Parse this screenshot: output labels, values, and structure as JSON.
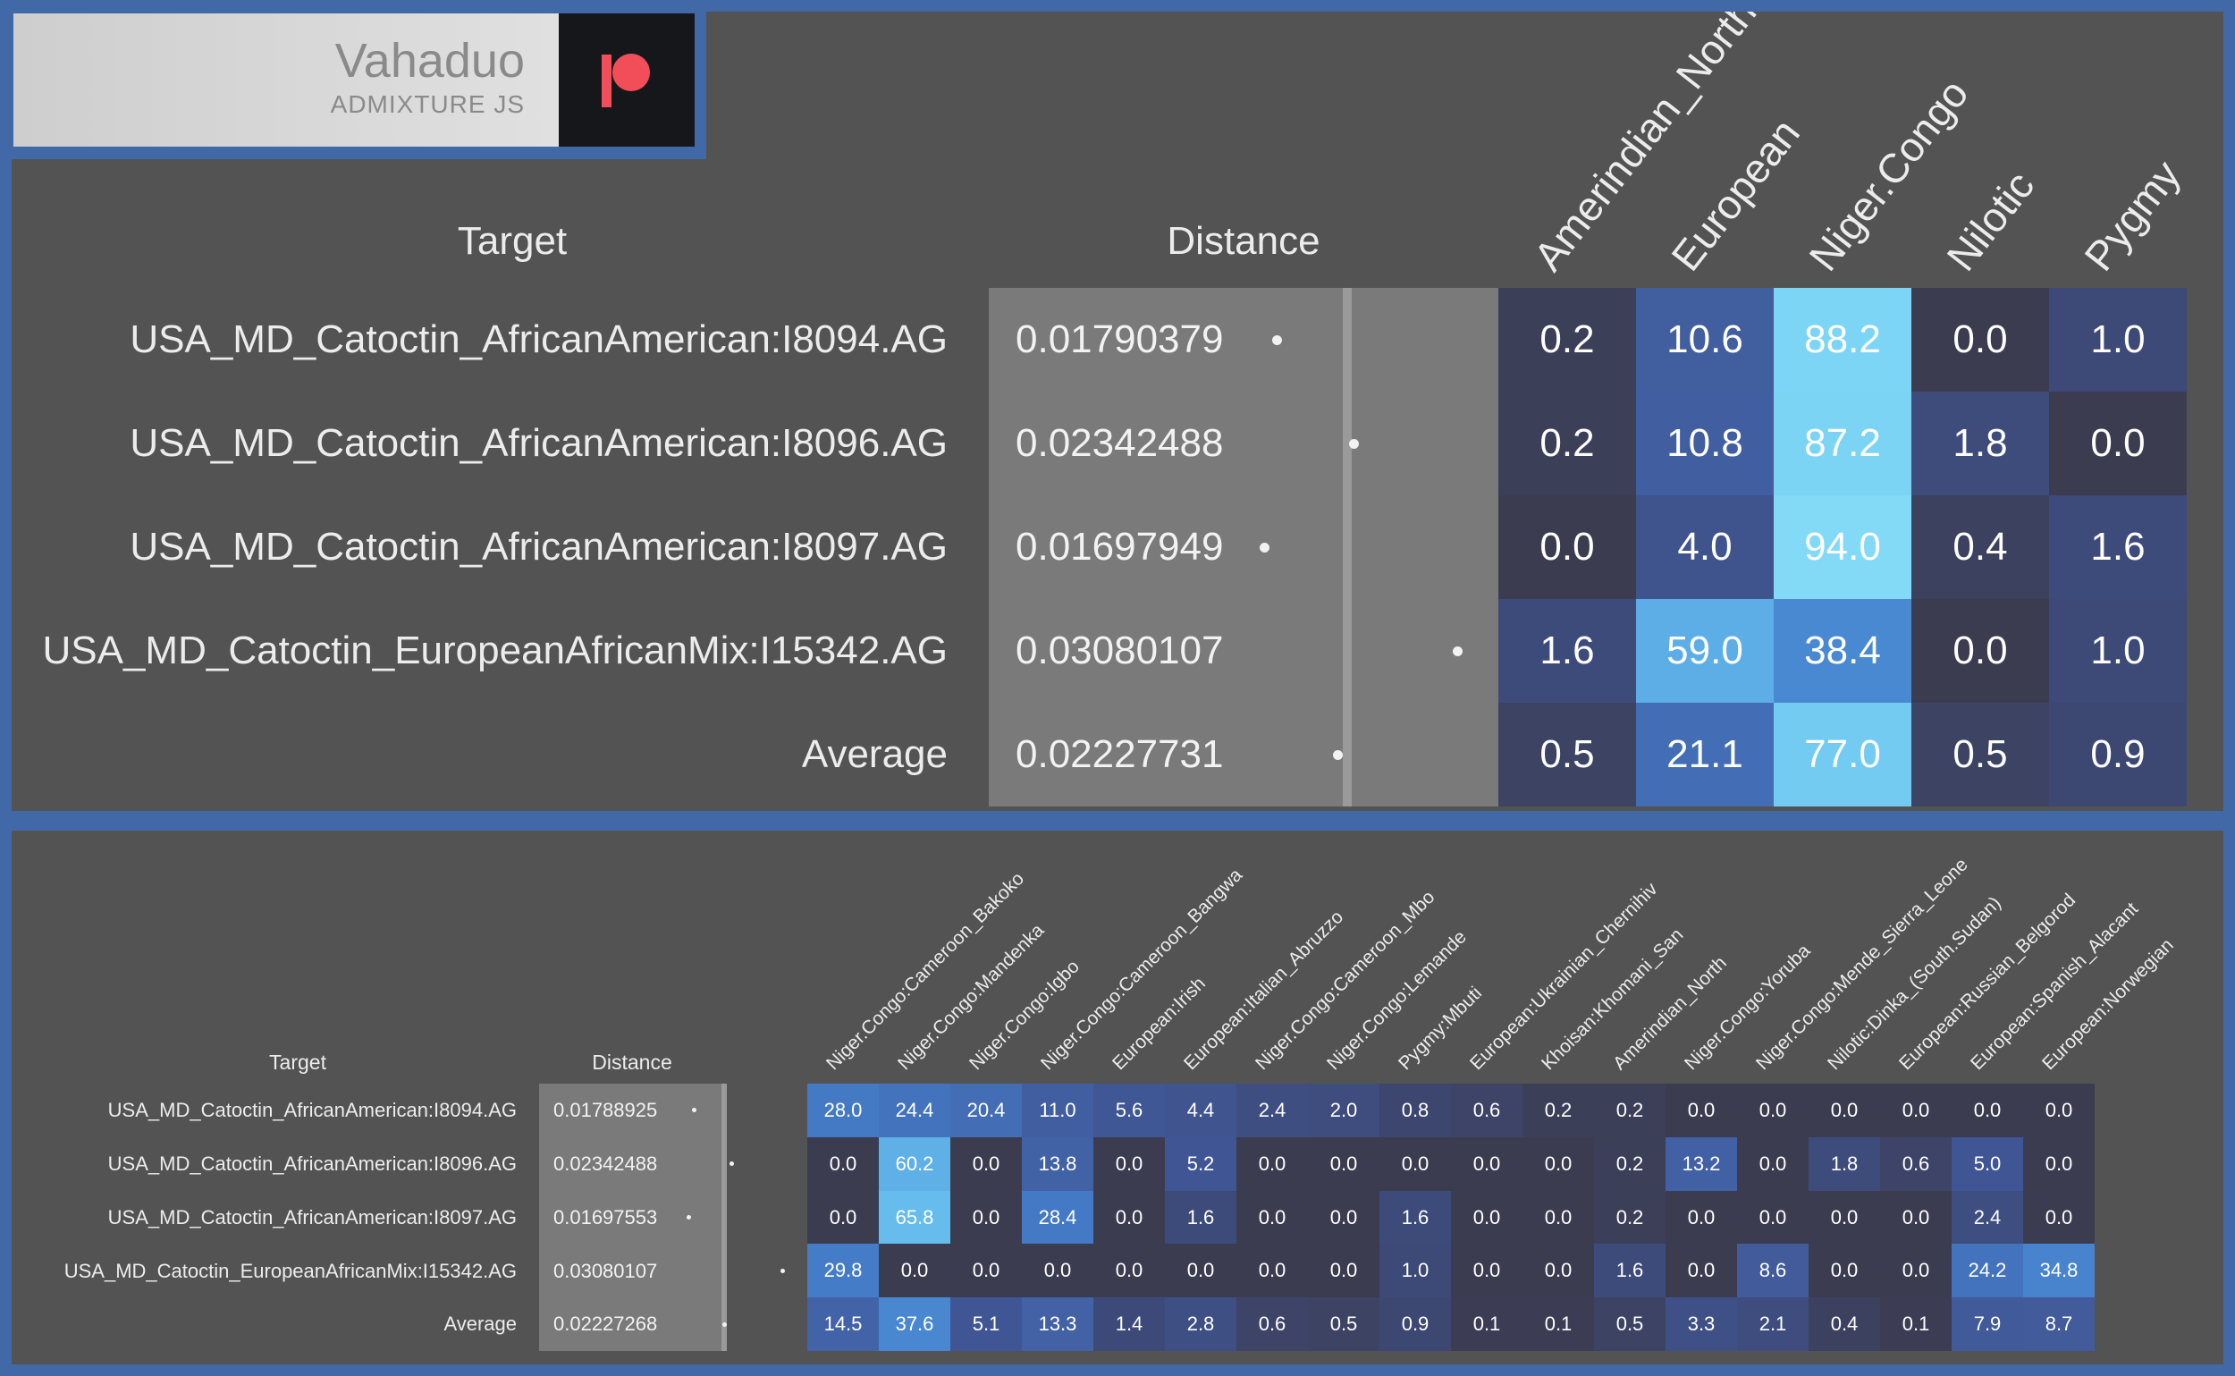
{
  "logo": {
    "title": "Vahaduo",
    "subtitle": "ADMIXTURE JS",
    "mark_icon": "patreon-icon",
    "mark_color": "#f24e5a"
  },
  "colors": {
    "frame": "#4169a8",
    "panel": "#535353",
    "distance_bg": "#7a7a7a",
    "heat_low": "#3c3c50",
    "heat_high": "#85dcf5"
  },
  "top_table": {
    "target_header": "Target",
    "distance_header": "Distance",
    "columns": [
      "Amerindian_North",
      "European",
      "Niger.Congo",
      "Nilotic",
      "Pygmy"
    ],
    "rows": [
      {
        "label": "USA_MD_Catoctin_AfricanAmerican:I8094.AG",
        "distance": "0.01790379",
        "values": [
          "0.2",
          "10.6",
          "88.2",
          "0.0",
          "1.0"
        ]
      },
      {
        "label": "USA_MD_Catoctin_AfricanAmerican:I8096.AG",
        "distance": "0.02342488",
        "values": [
          "0.2",
          "10.8",
          "87.2",
          "1.8",
          "0.0"
        ]
      },
      {
        "label": "USA_MD_Catoctin_AfricanAmerican:I8097.AG",
        "distance": "0.01697949",
        "values": [
          "0.0",
          "4.0",
          "94.0",
          "0.4",
          "1.6"
        ]
      },
      {
        "label": "USA_MD_Catoctin_EuropeanAfricanMix:I15342.AG",
        "distance": "0.03080107",
        "values": [
          "1.6",
          "59.0",
          "38.4",
          "0.0",
          "1.0"
        ]
      },
      {
        "label": "Average",
        "distance": "0.02227731",
        "values": [
          "0.5",
          "21.1",
          "77.0",
          "0.5",
          "0.9"
        ]
      }
    ]
  },
  "bottom_table": {
    "target_header": "Target",
    "distance_header": "Distance",
    "columns": [
      "Niger.Congo:Cameroon_Bakoko",
      "Niger.Congo:Mandenka",
      "Niger.Congo:Igbo",
      "Niger.Congo:Cameroon_Bangwa",
      "European:Irish",
      "European:Italian_Abruzzo",
      "Niger.Congo:Cameroon_Mbo",
      "Niger.Congo:Lemande",
      "Pygmy:Mbuti",
      "European:Ukrainian_Chernihiv",
      "Khoisan:Khomani_San",
      "Amerindian_North",
      "Niger.Congo:Yoruba",
      "Niger.Congo:Mende_Sierra_Leone",
      "Nilotic:Dinka_(South.Sudan)",
      "European:Russian_Belgorod",
      "European:Spanish_Alacant",
      "European:Norwegian"
    ],
    "rows": [
      {
        "label": "USA_MD_Catoctin_AfricanAmerican:I8094.AG",
        "distance": "0.01788925",
        "values": [
          "28.0",
          "24.4",
          "20.4",
          "11.0",
          "5.6",
          "4.4",
          "2.4",
          "2.0",
          "0.8",
          "0.6",
          "0.2",
          "0.2",
          "0.0",
          "0.0",
          "0.0",
          "0.0",
          "0.0",
          "0.0"
        ]
      },
      {
        "label": "USA_MD_Catoctin_AfricanAmerican:I8096.AG",
        "distance": "0.02342488",
        "values": [
          "0.0",
          "60.2",
          "0.0",
          "13.8",
          "0.0",
          "5.2",
          "0.0",
          "0.0",
          "0.0",
          "0.0",
          "0.0",
          "0.2",
          "13.2",
          "0.0",
          "1.8",
          "0.6",
          "5.0",
          "0.0"
        ]
      },
      {
        "label": "USA_MD_Catoctin_AfricanAmerican:I8097.AG",
        "distance": "0.01697553",
        "values": [
          "0.0",
          "65.8",
          "0.0",
          "28.4",
          "0.0",
          "1.6",
          "0.0",
          "0.0",
          "1.6",
          "0.0",
          "0.0",
          "0.2",
          "0.0",
          "0.0",
          "0.0",
          "0.0",
          "2.4",
          "0.0"
        ]
      },
      {
        "label": "USA_MD_Catoctin_EuropeanAfricanMix:I15342.AG",
        "distance": "0.03080107",
        "values": [
          "29.8",
          "0.0",
          "0.0",
          "0.0",
          "0.0",
          "0.0",
          "0.0",
          "0.0",
          "1.0",
          "0.0",
          "0.0",
          "1.6",
          "0.0",
          "8.6",
          "0.0",
          "0.0",
          "24.2",
          "34.8"
        ]
      },
      {
        "label": "Average",
        "distance": "0.02227268",
        "values": [
          "14.5",
          "37.6",
          "5.1",
          "13.3",
          "1.4",
          "2.8",
          "0.6",
          "0.5",
          "0.9",
          "0.1",
          "0.1",
          "0.5",
          "3.3",
          "2.1",
          "0.4",
          "0.1",
          "7.9",
          "8.7"
        ]
      }
    ]
  }
}
